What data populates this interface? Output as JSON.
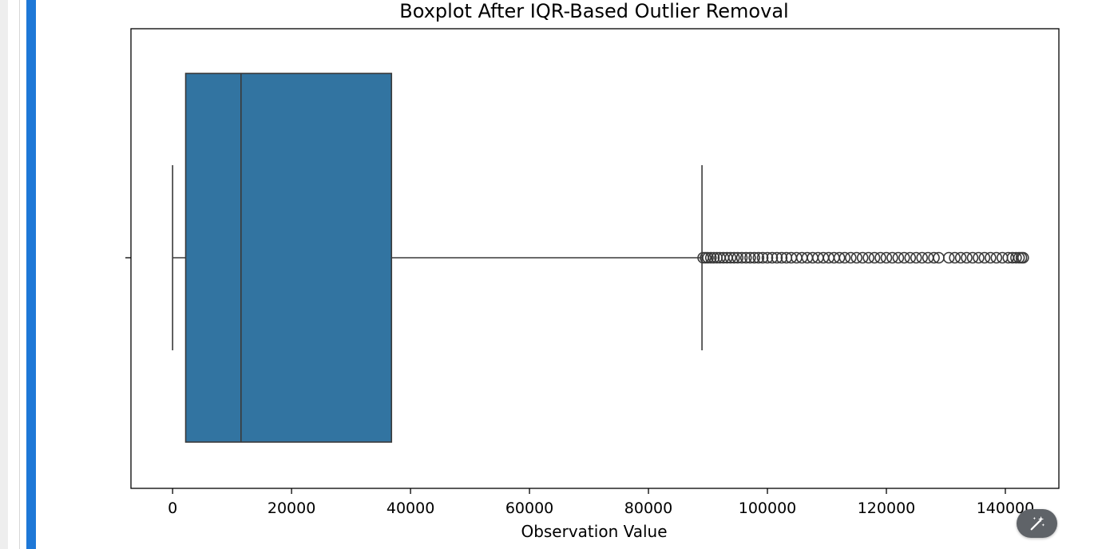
{
  "colors": {
    "cell_marker": "#1e78d7",
    "box_fill": "#3274a1",
    "line": "#3a3a3a",
    "gutter": "#eeeeee"
  },
  "toolbar": {
    "magic_icon": "magic-wand-icon"
  },
  "chart_data": {
    "type": "boxplot",
    "orientation": "horizontal",
    "title": "Boxplot After IQR-Based Outlier Removal",
    "xlabel": "Observation Value",
    "ylabel": "",
    "xlim": [
      -7000,
      149000
    ],
    "xticks": [
      0,
      20000,
      40000,
      60000,
      80000,
      100000,
      120000,
      140000
    ],
    "xtick_labels": [
      "0",
      "20000",
      "40000",
      "60000",
      "80000",
      "100000",
      "120000",
      "140000"
    ],
    "box": {
      "whisker_low": 0,
      "q1": 2200,
      "median": 11500,
      "q3": 36800,
      "whisker_high": 89000
    },
    "outliers": [
      89200,
      89600,
      90000,
      90500,
      91000,
      91500,
      92000,
      92600,
      93200,
      93800,
      94400,
      95000,
      95700,
      96400,
      97100,
      97800,
      98500,
      99200,
      100000,
      100800,
      101600,
      102400,
      103200,
      104000,
      104900,
      105800,
      106700,
      107600,
      108500,
      109400,
      110300,
      111200,
      112100,
      113000,
      114000,
      115000,
      116000,
      117000,
      118000,
      119000,
      120000,
      121000,
      122000,
      123000,
      124000,
      125000,
      126000,
      127000,
      128000,
      128800,
      130500,
      131500,
      132500,
      133500,
      134500,
      135500,
      136500,
      137500,
      138500,
      139500,
      140500,
      141200,
      141800,
      142300,
      142700,
      143000
    ],
    "grid": false,
    "legend": "none"
  }
}
